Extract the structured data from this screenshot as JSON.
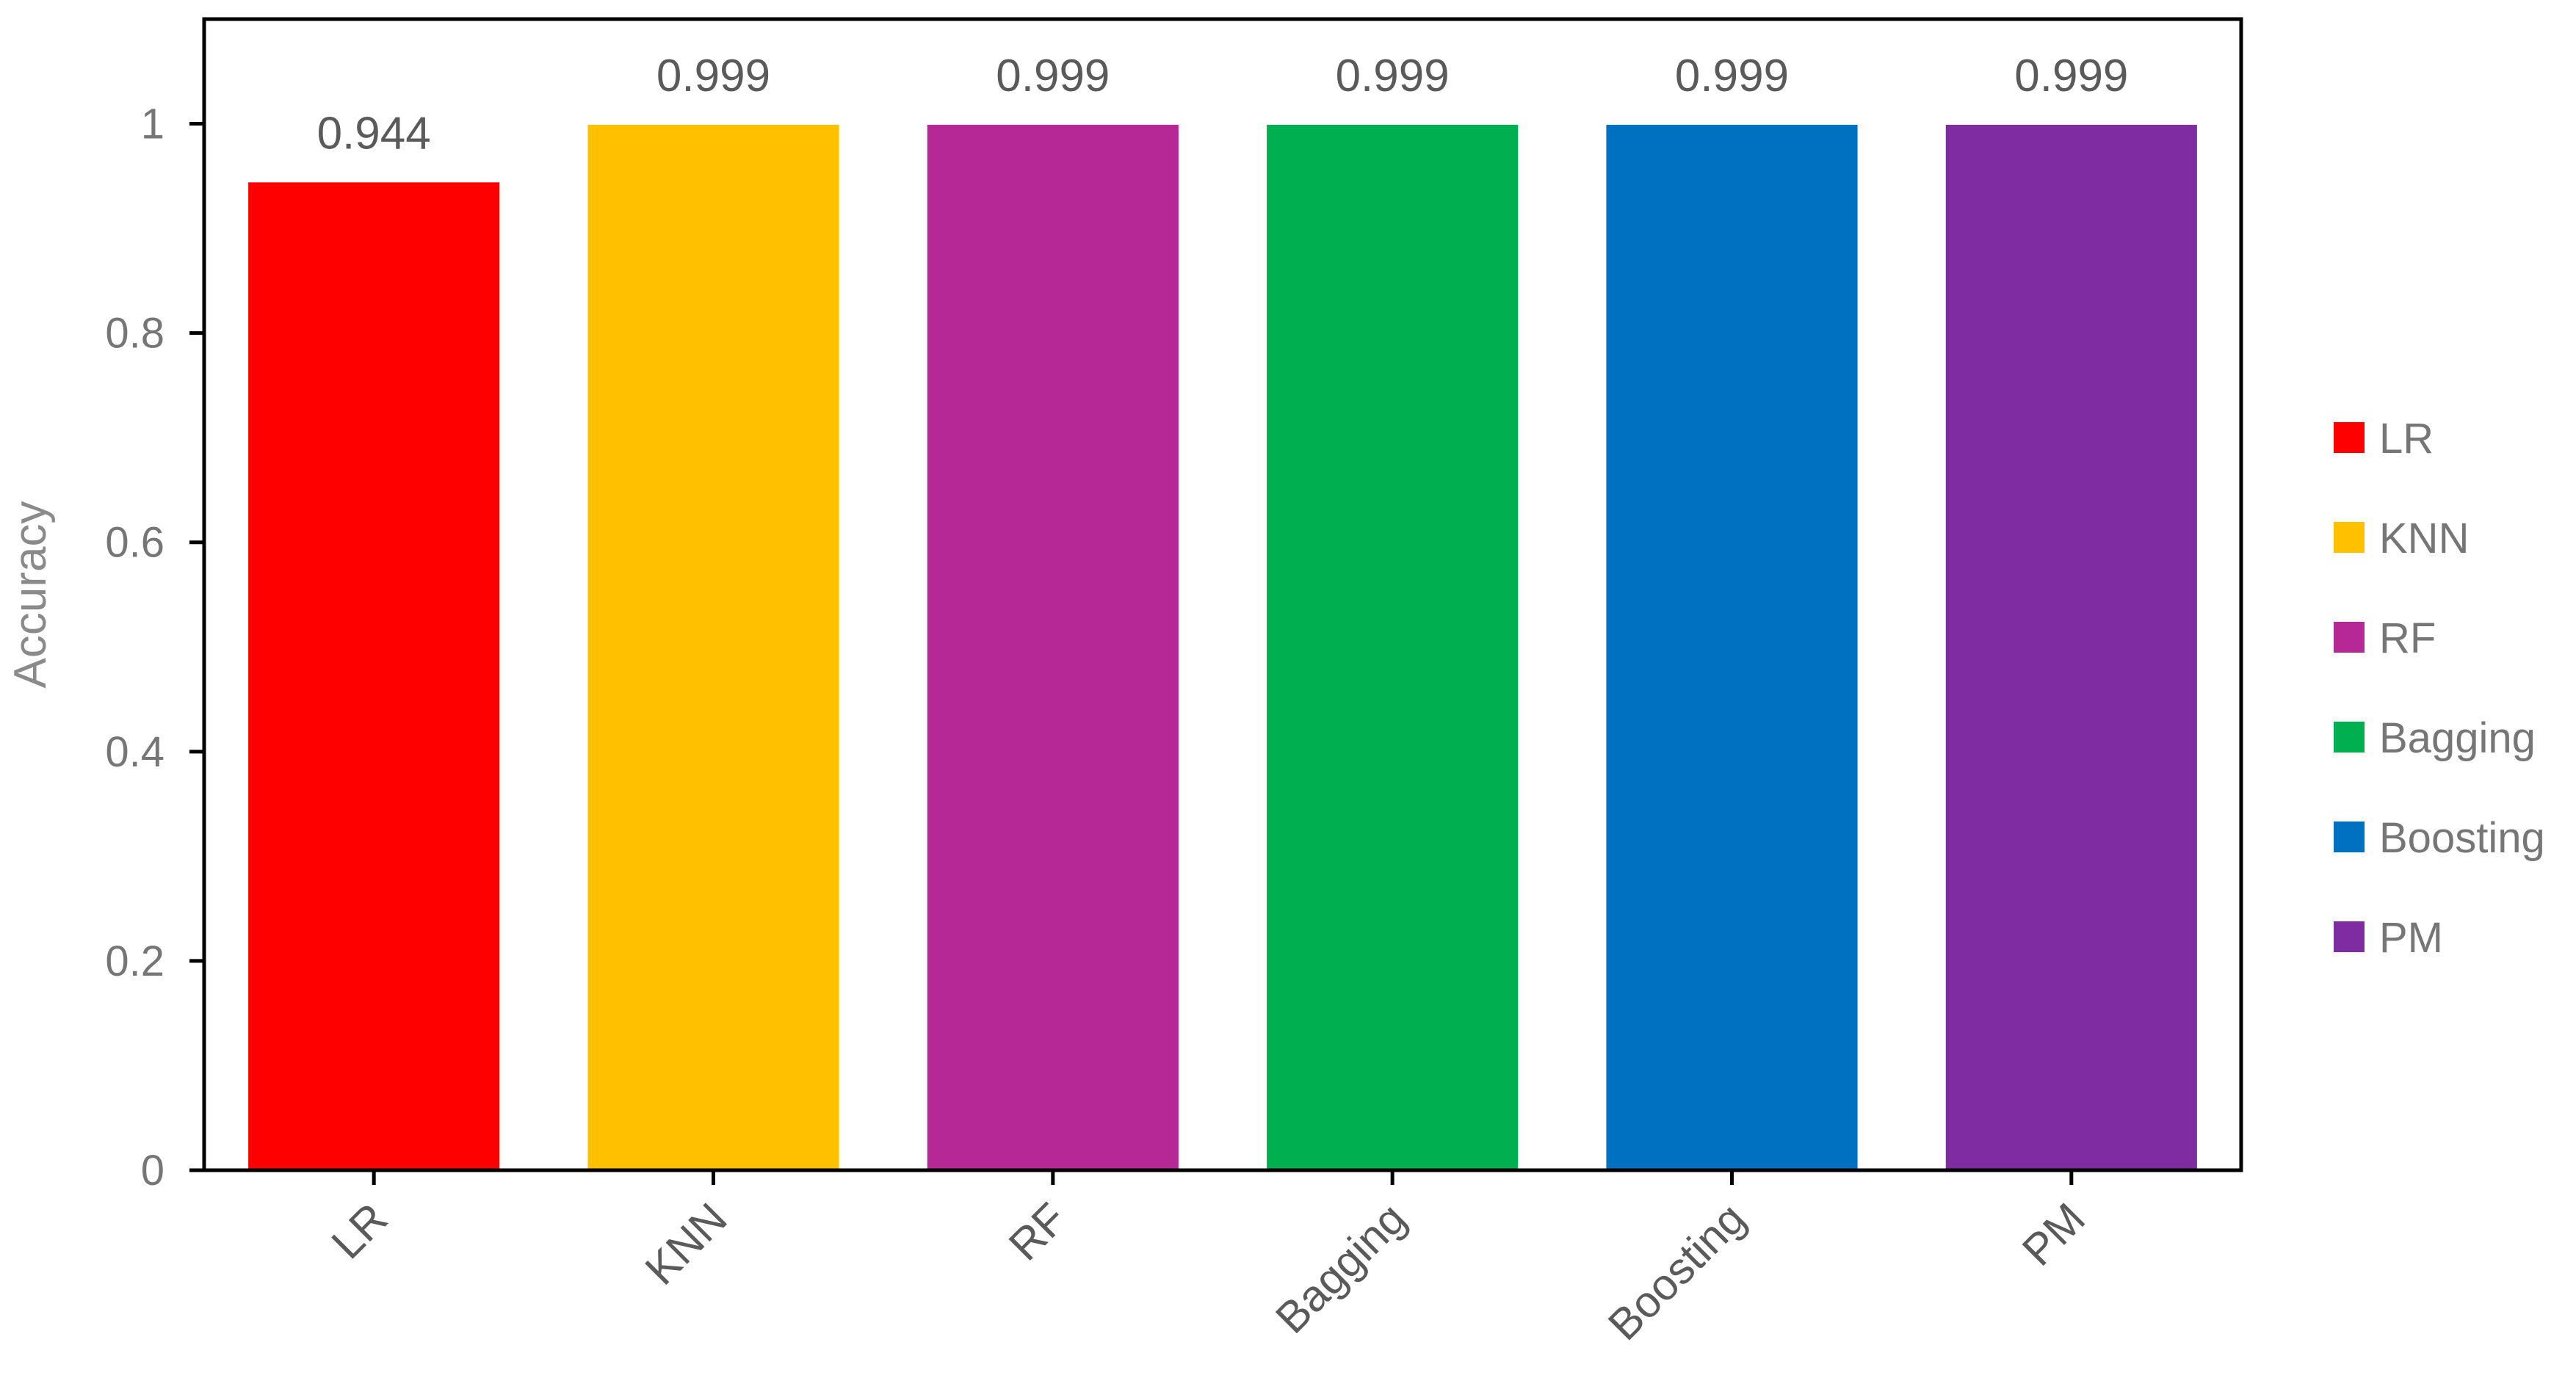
{
  "chart_data": {
    "type": "bar",
    "title": "",
    "xlabel": "",
    "ylabel": "Accuracy",
    "ylim": [
      0,
      1.1
    ],
    "yticks": [
      "0",
      "0.2",
      "0.4",
      "0.6",
      "0.8",
      "1"
    ],
    "categories": [
      "LR",
      "KNN",
      "RF",
      "Bagging",
      "Boosting",
      "PM"
    ],
    "values": [
      0.944,
      0.999,
      0.999,
      0.999,
      0.999,
      0.999
    ],
    "data_labels": [
      "0.944",
      "0.999",
      "0.999",
      "0.999",
      "0.999",
      "0.999"
    ],
    "colors": [
      "#ff0000",
      "#ffc000",
      "#b62895",
      "#00b050",
      "#0070c0",
      "#7f2ca3"
    ],
    "legend": {
      "placement": "right",
      "entries": [
        "LR",
        "KNN",
        "RF",
        "Bagging",
        "Boosting",
        "PM"
      ]
    },
    "grid": false
  }
}
